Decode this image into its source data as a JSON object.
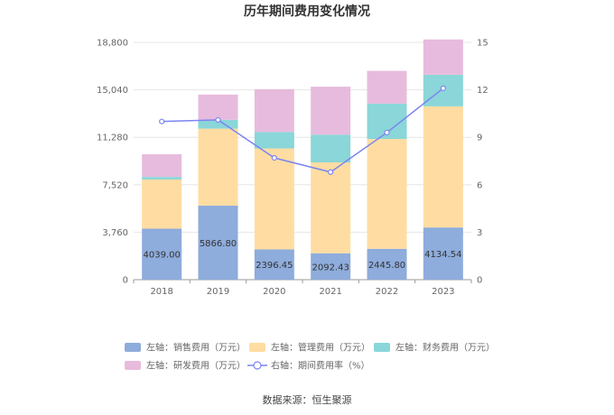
{
  "chart_data": {
    "type": "bar",
    "title": "历年期间费用变化情况",
    "categories": [
      "2018",
      "2019",
      "2020",
      "2021",
      "2022",
      "2023"
    ],
    "left_axis": {
      "ylim": [
        0,
        18800
      ],
      "ticks": [
        "0",
        "3,760",
        "7,520",
        "11,280",
        "15,040",
        "18,800"
      ]
    },
    "right_axis": {
      "ylim": [
        0,
        15
      ],
      "ticks": [
        "0",
        "3",
        "6",
        "9",
        "12",
        "15"
      ]
    },
    "series": [
      {
        "name": "左轴：销售费用（万元）",
        "type": "bar",
        "stack": "expenses",
        "axis": "left",
        "color": "#8eacdc",
        "values": [
          4039.0,
          5866.8,
          2396.45,
          2092.43,
          2445.8,
          4134.54
        ],
        "labels": [
          "4039.00",
          "5866.80",
          "2396.45",
          "2092.43",
          "2445.80",
          "4134.54"
        ]
      },
      {
        "name": "左轴：管理费用（万元）",
        "type": "bar",
        "stack": "expenses",
        "axis": "left",
        "color": "#ffdda2",
        "values": [
          3900,
          6100,
          8000,
          7200,
          8700,
          9600
        ]
      },
      {
        "name": "左轴：财务费用（万元）",
        "type": "bar",
        "stack": "expenses",
        "axis": "left",
        "color": "#8ad6d8",
        "values": [
          200,
          700,
          1300,
          2200,
          2800,
          2500
        ]
      },
      {
        "name": "左轴：研发费用（万元）",
        "type": "bar",
        "stack": "expenses",
        "axis": "left",
        "color": "#e7bbdd",
        "values": [
          1800,
          2000,
          3400,
          3800,
          2600,
          2800
        ]
      },
      {
        "name": "右轴：期间费用率（%）",
        "type": "line",
        "axis": "right",
        "color": "#7c84f0",
        "values": [
          10.0,
          10.1,
          7.7,
          6.8,
          9.3,
          12.1
        ]
      }
    ],
    "legend_position": "bottom",
    "grid": true
  },
  "source": "数据来源：恒生聚源"
}
